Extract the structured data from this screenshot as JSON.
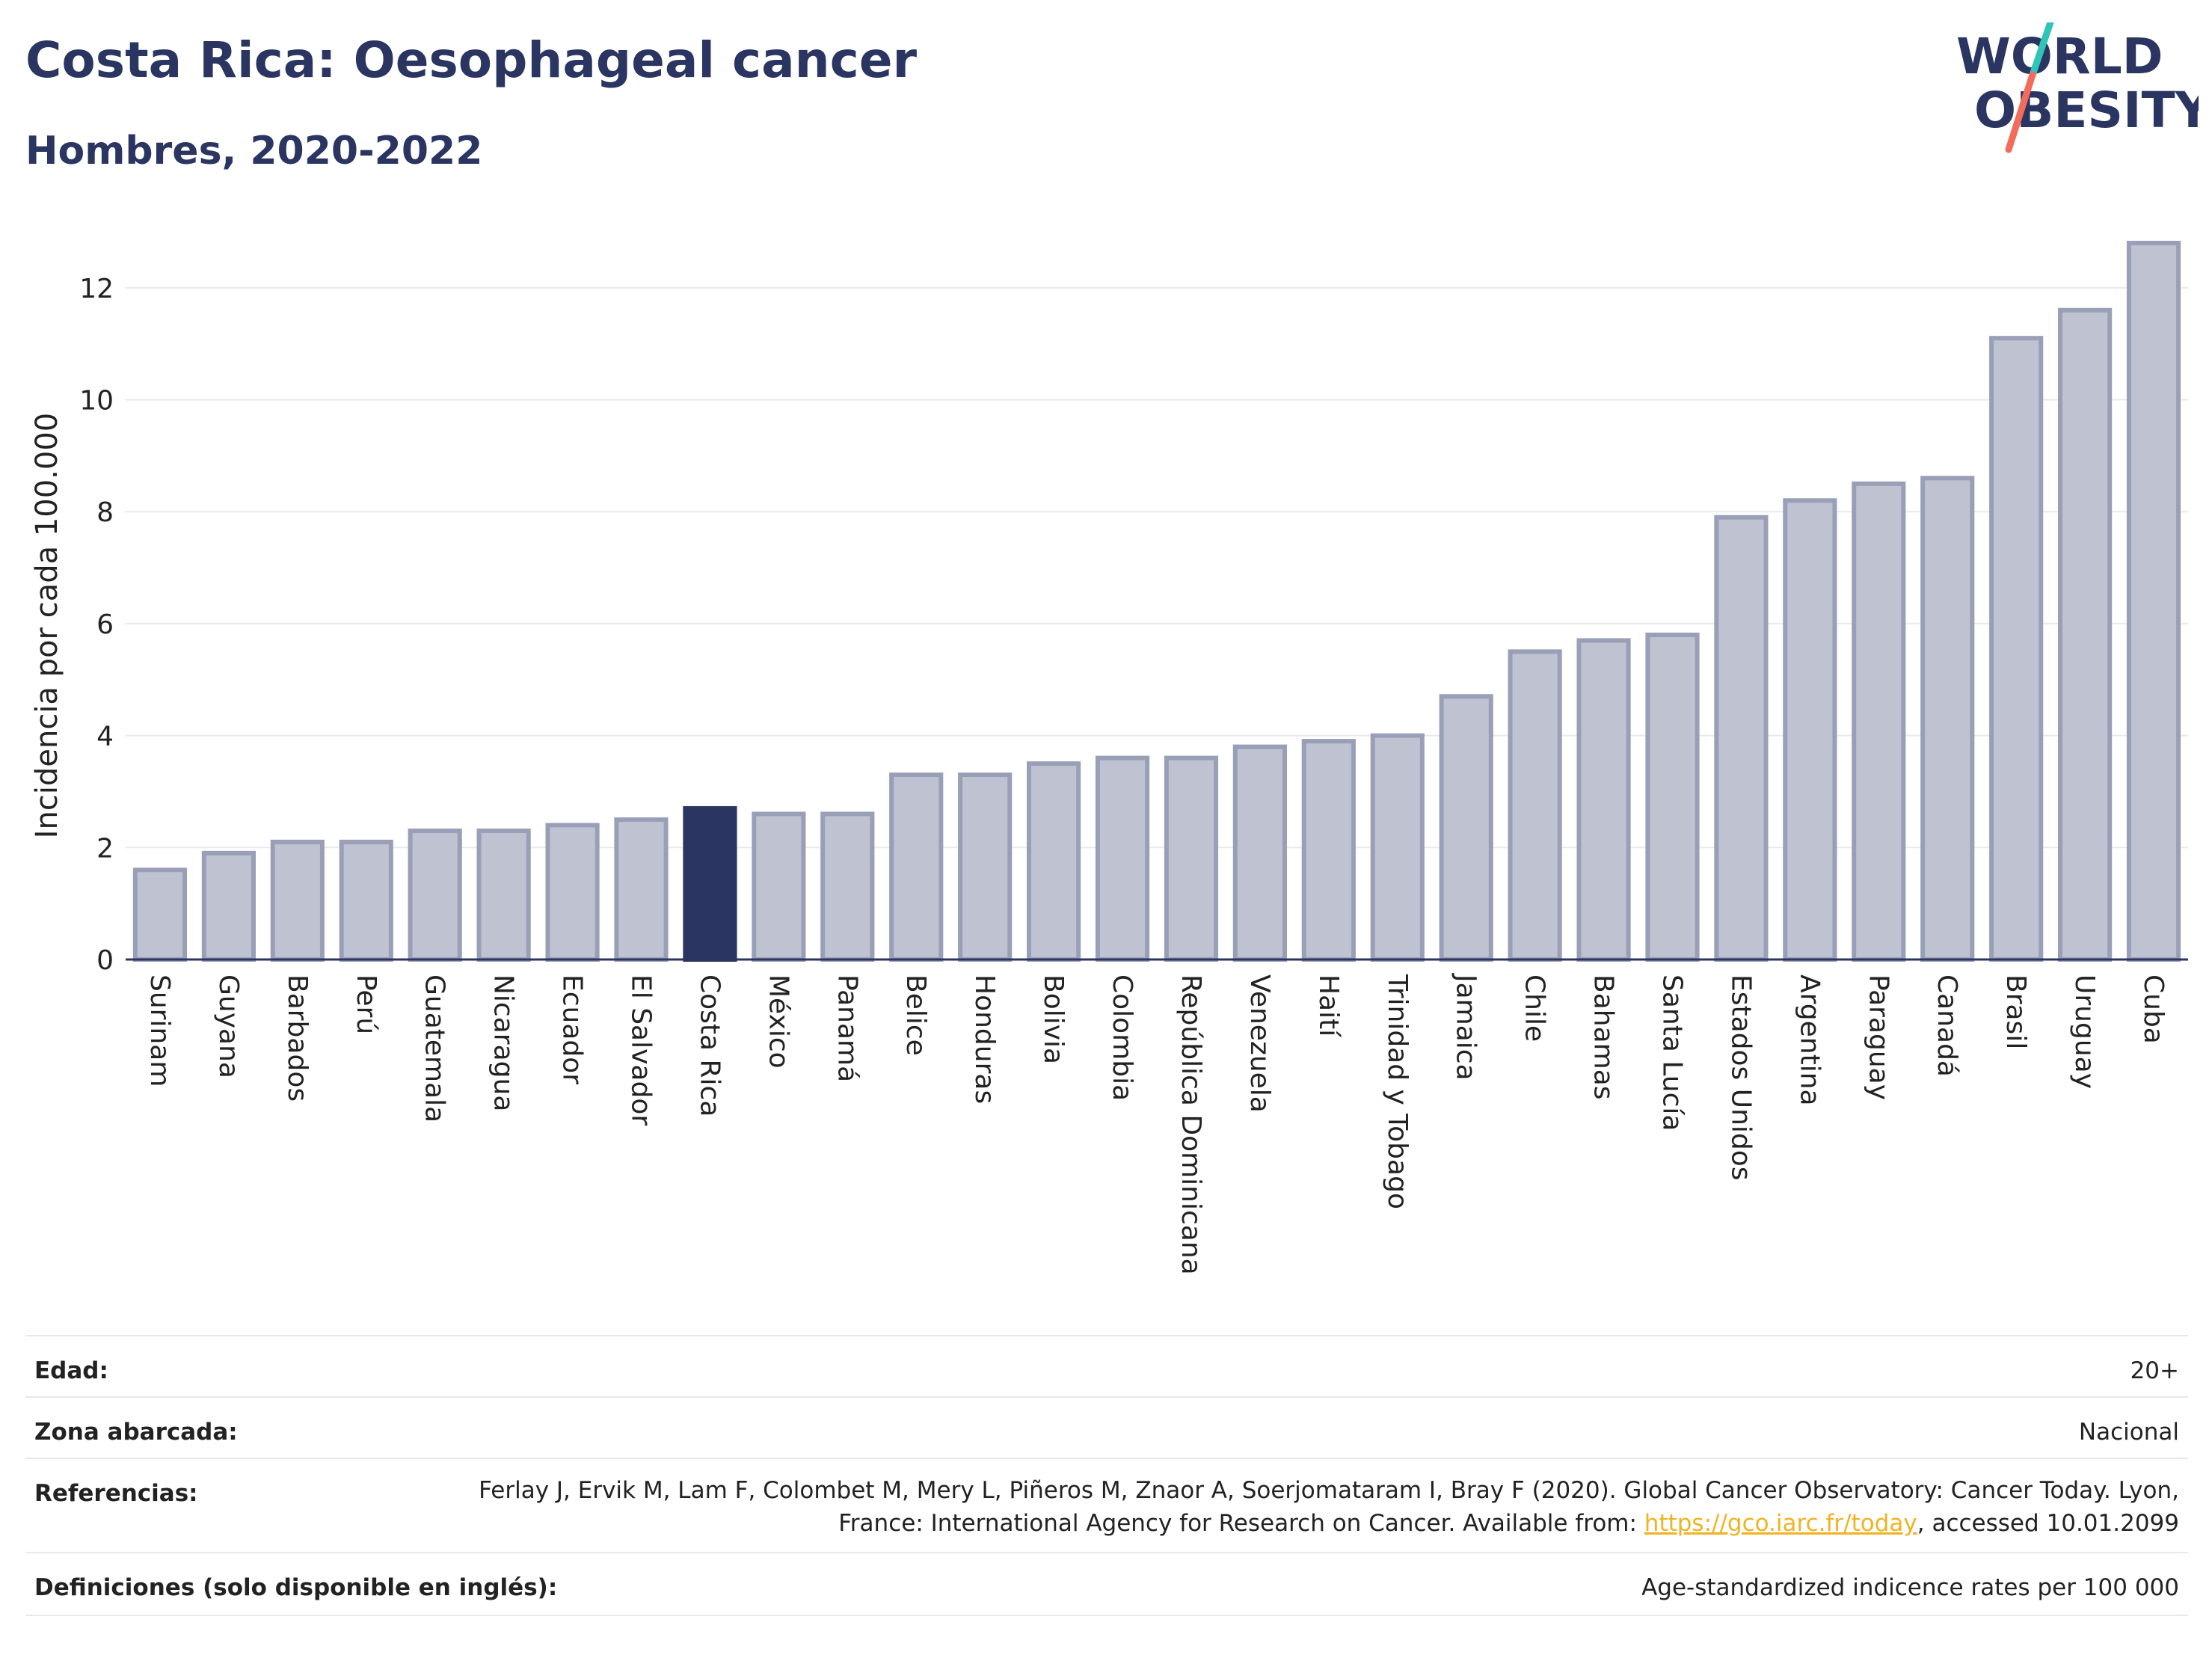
{
  "header": {
    "title": "Costa Rica: Oesophageal cancer",
    "subtitle": "Hombres, 2020-2022"
  },
  "logo": {
    "line1": "WORLD",
    "line2": "OBESITY",
    "accent_colors": [
      "#2ec4b6",
      "#f26b5b"
    ]
  },
  "chart_data": {
    "type": "bar",
    "ylabel": "Incidencia por cada 100.000",
    "ylim": [
      0,
      13
    ],
    "yticks": [
      0,
      2,
      4,
      6,
      8,
      10,
      12
    ],
    "grid": true,
    "highlight": "Costa Rica",
    "colors": {
      "bar": "#bfc2d0",
      "bar_border": "#9a9fb8",
      "highlight": "#2b3561"
    },
    "categories": [
      "Surinam",
      "Guyana",
      "Barbados",
      "Perú",
      "Guatemala",
      "Nicaragua",
      "Ecuador",
      "El Salvador",
      "Costa Rica",
      "México",
      "Panamá",
      "Belice",
      "Honduras",
      "Bolivia",
      "Colombia",
      "República Dominicana",
      "Venezuela",
      "Haití",
      "Trinidad y Tobago",
      "Jamaica",
      "Chile",
      "Bahamas",
      "Santa Lucía",
      "Estados Unidos",
      "Argentina",
      "Paraguay",
      "Canadá",
      "Brasil",
      "Uruguay",
      "Cuba"
    ],
    "values": [
      1.6,
      1.9,
      2.1,
      2.1,
      2.3,
      2.3,
      2.4,
      2.5,
      2.7,
      2.6,
      2.6,
      3.3,
      3.3,
      3.5,
      3.6,
      3.6,
      3.8,
      3.9,
      4.0,
      4.7,
      5.5,
      5.7,
      5.8,
      7.9,
      8.2,
      8.5,
      8.6,
      11.1,
      11.6,
      12.8
    ]
  },
  "meta": {
    "age_label": "Edad:",
    "age_value": "20+",
    "area_label": "Zona abarcada:",
    "area_value": "Nacional",
    "ref_label": "Referencias:",
    "ref_text1": "Ferlay J, Ervik M, Lam F, Colombet M, Mery L, Piñeros M, Znaor A, Soerjomataram I, Bray F (2020). Global Cancer Observatory: Cancer Today. Lyon, France: International Agency for Research on Cancer. Available from: ",
    "ref_link": "https://gco.iarc.fr/today",
    "ref_text2": ", accessed 10.01.2099",
    "def_label": "Definiciones (solo disponible en inglés):",
    "def_value": "Age-standardized indicence rates per 100 000"
  }
}
